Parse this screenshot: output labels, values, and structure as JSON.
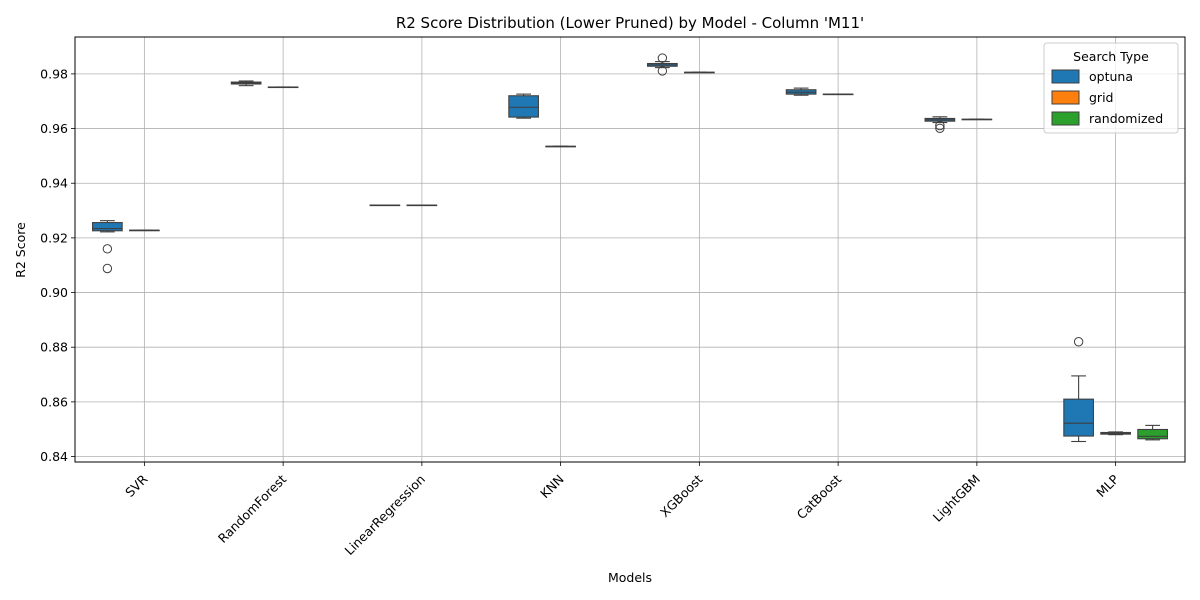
{
  "chart_data": {
    "type": "box",
    "title": "R2 Score Distribution (Lower Pruned) by Model - Column 'M11'",
    "xlabel": "Models",
    "ylabel": "R2 Score",
    "ylim": [
      0.838,
      0.9935
    ],
    "yticks": [
      0.84,
      0.86,
      0.88,
      0.9,
      0.92,
      0.94,
      0.96,
      0.98
    ],
    "ytick_labels": [
      "0.84",
      "0.86",
      "0.88",
      "0.90",
      "0.92",
      "0.94",
      "0.96",
      "0.98"
    ],
    "grid": true,
    "categories": [
      "SVR",
      "RandomForest",
      "LinearRegression",
      "KNN",
      "XGBoost",
      "CatBoost",
      "LightGBM",
      "MLP"
    ],
    "legend": {
      "title": "Search Type",
      "position": "top-right",
      "entries": [
        {
          "name": "optuna",
          "color": "#1f77b4"
        },
        {
          "name": "grid",
          "color": "#ff7f0e"
        },
        {
          "name": "randomized",
          "color": "#2ca02c"
        }
      ]
    },
    "boxes": [
      {
        "category": "SVR",
        "series": "optuna",
        "q1": 0.9226,
        "median": 0.9234,
        "q3": 0.9256,
        "whisker_low": 0.9222,
        "whisker_high": 0.9263,
        "outliers": [
          0.916,
          0.9088
        ]
      },
      {
        "category": "SVR",
        "series": "grid",
        "q1": 0.9228,
        "median": 0.9228,
        "q3": 0.9228,
        "whisker_low": 0.9228,
        "whisker_high": 0.9228,
        "outliers": []
      },
      {
        "category": "RandomForest",
        "series": "optuna",
        "q1": 0.9763,
        "median": 0.9767,
        "q3": 0.977,
        "whisker_low": 0.9757,
        "whisker_high": 0.9774,
        "outliers": []
      },
      {
        "category": "RandomForest",
        "series": "grid",
        "q1": 0.9752,
        "median": 0.9752,
        "q3": 0.9752,
        "whisker_low": 0.9752,
        "whisker_high": 0.9752,
        "outliers": []
      },
      {
        "category": "LinearRegression",
        "series": "optuna",
        "q1": 0.932,
        "median": 0.932,
        "q3": 0.932,
        "whisker_low": 0.932,
        "whisker_high": 0.932,
        "outliers": []
      },
      {
        "category": "LinearRegression",
        "series": "grid",
        "q1": 0.932,
        "median": 0.932,
        "q3": 0.932,
        "whisker_low": 0.932,
        "whisker_high": 0.932,
        "outliers": []
      },
      {
        "category": "KNN",
        "series": "optuna",
        "q1": 0.9642,
        "median": 0.9678,
        "q3": 0.972,
        "whisker_low": 0.9638,
        "whisker_high": 0.9726,
        "outliers": []
      },
      {
        "category": "KNN",
        "series": "grid",
        "q1": 0.9535,
        "median": 0.9535,
        "q3": 0.9535,
        "whisker_low": 0.9535,
        "whisker_high": 0.9535,
        "outliers": []
      },
      {
        "category": "XGBoost",
        "series": "optuna",
        "q1": 0.9828,
        "median": 0.9833,
        "q3": 0.9838,
        "whisker_low": 0.9823,
        "whisker_high": 0.9845,
        "outliers": [
          0.9858,
          0.9811
        ]
      },
      {
        "category": "XGBoost",
        "series": "grid",
        "q1": 0.9806,
        "median": 0.9806,
        "q3": 0.9806,
        "whisker_low": 0.9806,
        "whisker_high": 0.9806,
        "outliers": []
      },
      {
        "category": "CatBoost",
        "series": "optuna",
        "q1": 0.9726,
        "median": 0.9733,
        "q3": 0.9742,
        "whisker_low": 0.9722,
        "whisker_high": 0.9748,
        "outliers": []
      },
      {
        "category": "CatBoost",
        "series": "grid",
        "q1": 0.9726,
        "median": 0.9726,
        "q3": 0.9726,
        "whisker_low": 0.9726,
        "whisker_high": 0.9726,
        "outliers": []
      },
      {
        "category": "LightGBM",
        "series": "optuna",
        "q1": 0.9627,
        "median": 0.9632,
        "q3": 0.9637,
        "whisker_low": 0.9622,
        "whisker_high": 0.9643,
        "outliers": [
          0.9611,
          0.9601
        ]
      },
      {
        "category": "LightGBM",
        "series": "grid",
        "q1": 0.9634,
        "median": 0.9634,
        "q3": 0.9634,
        "whisker_low": 0.9634,
        "whisker_high": 0.9634,
        "outliers": []
      },
      {
        "category": "MLP",
        "series": "optuna",
        "q1": 0.8475,
        "median": 0.8522,
        "q3": 0.861,
        "whisker_low": 0.8455,
        "whisker_high": 0.8695,
        "outliers": [
          0.882
        ]
      },
      {
        "category": "MLP",
        "series": "grid",
        "q1": 0.8482,
        "median": 0.8484,
        "q3": 0.8488,
        "whisker_low": 0.848,
        "whisker_high": 0.849,
        "outliers": []
      },
      {
        "category": "MLP",
        "series": "randomized",
        "q1": 0.8465,
        "median": 0.8474,
        "q3": 0.8499,
        "whisker_low": 0.8461,
        "whisker_high": 0.8514,
        "outliers": []
      }
    ]
  }
}
